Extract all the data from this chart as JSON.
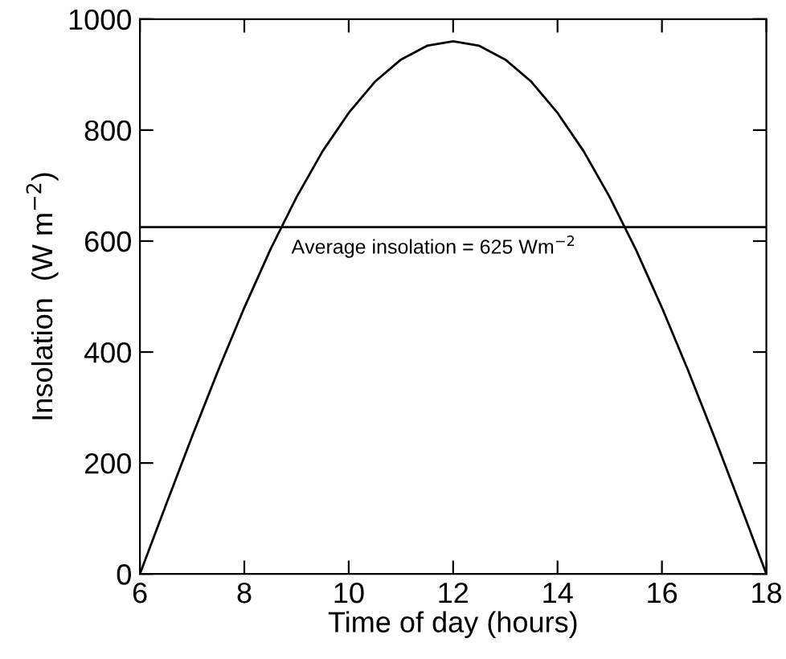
{
  "chart_data": {
    "type": "line",
    "xlabel": "Time of day (hours)",
    "ylabel": "Insolation  (W m$^{−2}$)",
    "x": [
      6,
      6.5,
      7,
      7.5,
      8,
      8.5,
      9,
      9.5,
      10,
      10.5,
      11,
      11.5,
      12,
      12.5,
      13,
      13.5,
      14,
      14.5,
      15,
      15.5,
      16,
      16.5,
      17,
      17.5,
      18
    ],
    "series": [
      {
        "color": "#000000",
        "values": [
          0,
          125,
          248,
          367,
          480,
          585,
          679,
          762,
          831,
          887,
          927,
          952,
          960,
          952,
          927,
          887,
          831,
          762,
          679,
          585,
          480,
          367,
          248,
          125,
          0
        ]
      }
    ],
    "xlim": [
      6,
      18
    ],
    "ylim": [
      0,
      1000
    ],
    "xticks": [
      6,
      8,
      10,
      12,
      14,
      16,
      18
    ],
    "yticks": [
      0,
      200,
      400,
      600,
      800,
      1000
    ],
    "ref_lines": [
      {
        "axis": "y",
        "value": 625,
        "label": "Average insolation = 625 Wm$^{−2}$",
        "color": "#000000"
      }
    ],
    "grid": false,
    "legend": false,
    "marker": "none",
    "line_style": "solid"
  }
}
